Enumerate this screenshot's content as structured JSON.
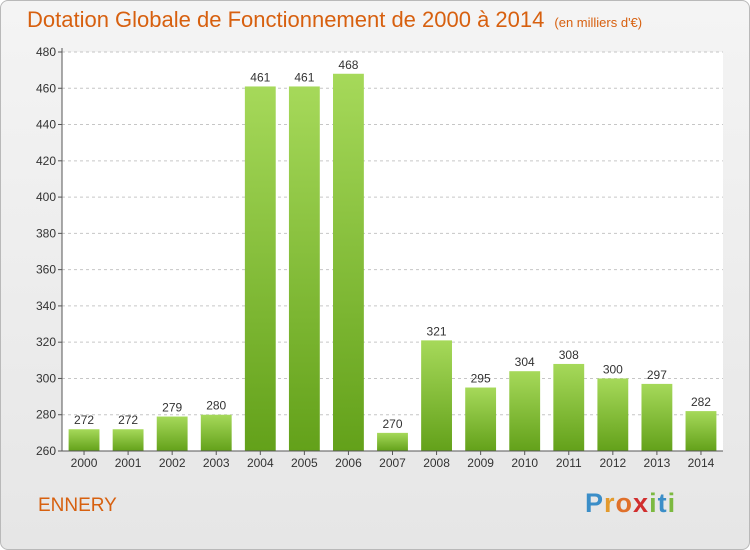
{
  "header": {
    "title": "Dotation Globale de Fonctionnement de 2000 à 2014",
    "unit": "(en milliers d'€)"
  },
  "footer": {
    "commune": "ENNERY",
    "logo": "Proxiti"
  },
  "colors": {
    "bar_light": "#a6d95a",
    "bar_dark": "#63a11a",
    "accent": "#d7600f",
    "grid": "#c6c6c6"
  },
  "chart_data": {
    "type": "bar",
    "title": "Dotation Globale de Fonctionnement de 2000 à 2014",
    "xlabel": "",
    "ylabel": "",
    "categories": [
      "2000",
      "2001",
      "2002",
      "2003",
      "2004",
      "2005",
      "2006",
      "2007",
      "2008",
      "2009",
      "2010",
      "2011",
      "2012",
      "2013",
      "2014"
    ],
    "values": [
      272,
      272,
      279,
      280,
      461,
      461,
      468,
      270,
      321,
      295,
      304,
      308,
      300,
      297,
      282
    ],
    "ylim": [
      260,
      480
    ],
    "yticks": [
      260,
      280,
      300,
      320,
      340,
      360,
      380,
      400,
      420,
      440,
      460,
      480
    ],
    "grid": true,
    "legend": "none"
  }
}
